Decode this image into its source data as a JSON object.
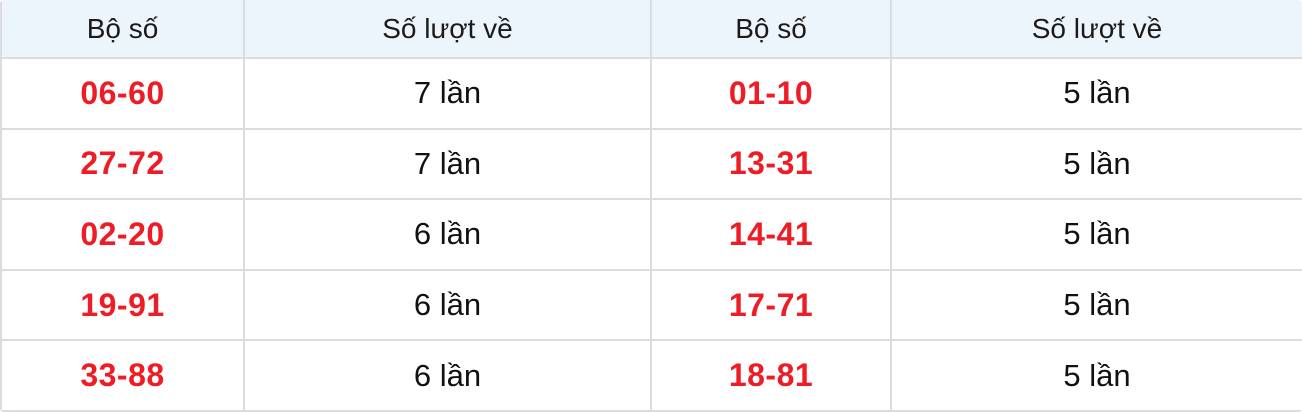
{
  "table": {
    "headers": [
      "Bộ số",
      "Số lượt về",
      "Bộ số",
      "Số lượt về"
    ],
    "rows": [
      {
        "pair1": "06-60",
        "count1": "7 lần",
        "pair2": "01-10",
        "count2": "5 lần"
      },
      {
        "pair1": "27-72",
        "count1": "7 lần",
        "pair2": "13-31",
        "count2": "5 lần"
      },
      {
        "pair1": "02-20",
        "count1": "6 lần",
        "pair2": "14-41",
        "count2": "5 lần"
      },
      {
        "pair1": "19-91",
        "count1": "6 lần",
        "pair2": "17-71",
        "count2": "5 lần"
      },
      {
        "pair1": "33-88",
        "count1": "6 lần",
        "pair2": "18-81",
        "count2": "5 lần"
      }
    ],
    "colors": {
      "header_bg": "#ecf4fc",
      "border": "#dcdce0",
      "pair_red": "#ed1c25",
      "count_text": "#111111",
      "header_text": "#1b1b1b"
    }
  },
  "chart_data": {
    "type": "table",
    "title": "",
    "columns": [
      "Bộ số",
      "Số lượt về",
      "Bộ số",
      "Số lượt về"
    ],
    "rows": [
      [
        "06-60",
        "7 lần",
        "01-10",
        "5 lần"
      ],
      [
        "27-72",
        "7 lần",
        "13-31",
        "5 lần"
      ],
      [
        "02-20",
        "6 lần",
        "14-41",
        "5 lần"
      ],
      [
        "19-91",
        "6 lần",
        "17-71",
        "5 lần"
      ],
      [
        "33-88",
        "6 lần",
        "18-81",
        "5 lần"
      ]
    ],
    "pair_frequencies": [
      {
        "pair": "06-60",
        "count": 7
      },
      {
        "pair": "27-72",
        "count": 7
      },
      {
        "pair": "02-20",
        "count": 6
      },
      {
        "pair": "19-91",
        "count": 6
      },
      {
        "pair": "33-88",
        "count": 6
      },
      {
        "pair": "01-10",
        "count": 5
      },
      {
        "pair": "13-31",
        "count": 5
      },
      {
        "pair": "14-41",
        "count": 5
      },
      {
        "pair": "17-71",
        "count": 5
      },
      {
        "pair": "18-81",
        "count": 5
      }
    ]
  }
}
